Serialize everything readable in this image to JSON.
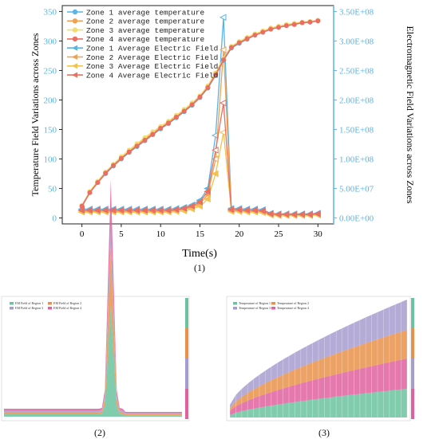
{
  "chart_data": [
    {
      "type": "line",
      "panel_label": "(1)",
      "xlabel": "Time(s)",
      "ylabel_left": "Temperature Field Variations across Zones",
      "ylabel_right": "Electromagnetic Field Variations across Zones",
      "xlim": [
        -2.5,
        32
      ],
      "ylim_left": [
        -10,
        360
      ],
      "ylim_right": [
        -10000000.0,
        360000000.0
      ],
      "x_ticks": [
        0,
        5,
        10,
        15,
        20,
        25,
        30
      ],
      "y_ticks_left": [
        0,
        50,
        100,
        150,
        200,
        250,
        300,
        350
      ],
      "y_ticks_right": [
        "0.00E+00",
        "5.00E+07",
        "1.00E+08",
        "1.50E+08",
        "2.00E+08",
        "2.50E+08",
        "3.00E+08",
        "3.50E+08"
      ],
      "y_ticks_right_values": [
        0,
        50000000.0,
        100000000.0,
        150000000.0,
        200000000.0,
        250000000.0,
        300000000.0,
        350000000.0
      ],
      "right_axis_color": "#5ab4e5",
      "legend_position": "top-left",
      "x": [
        0,
        1,
        2,
        3,
        4,
        5,
        6,
        7,
        8,
        9,
        10,
        11,
        12,
        13,
        14,
        15,
        16,
        17,
        18,
        19,
        20,
        21,
        22,
        23,
        24,
        25,
        26,
        27,
        28,
        29,
        30
      ],
      "series_temperature": [
        {
          "name": "Zone 1 average temperature",
          "color": "#5ab4e5",
          "marker": "circle",
          "values": [
            20,
            43,
            60,
            75,
            88,
            100,
            111,
            121,
            131,
            141,
            151,
            160,
            170,
            180,
            191,
            204,
            220,
            242,
            267,
            288,
            296,
            303,
            310,
            315,
            320,
            323,
            326,
            328,
            331,
            332,
            334
          ]
        },
        {
          "name": "Zone 2 average temperature",
          "color": "#f0a050",
          "marker": "circle",
          "values": [
            21,
            44,
            61,
            77,
            90,
            102,
            113,
            124,
            134,
            143,
            153,
            162,
            172,
            182,
            193,
            206,
            222,
            244,
            269,
            290,
            298,
            305,
            311,
            316,
            321,
            324,
            327,
            329,
            331,
            333,
            335
          ]
        },
        {
          "name": "Zone 3 average temperature",
          "color": "#f2dc6a",
          "marker": "circle",
          "values": [
            21,
            45,
            62,
            78,
            91,
            104,
            115,
            126,
            136,
            146,
            155,
            164,
            174,
            184,
            195,
            207,
            224,
            246,
            270,
            291,
            299,
            306,
            312,
            317,
            322,
            325,
            328,
            330,
            332,
            333,
            335
          ]
        },
        {
          "name": "Zone 4 average temperature",
          "color": "#ea6f60",
          "marker": "circle",
          "values": [
            20,
            43,
            60,
            76,
            89,
            101,
            112,
            122,
            132,
            142,
            152,
            161,
            171,
            181,
            192,
            205,
            221,
            243,
            268,
            289,
            297,
            304,
            310,
            315,
            320,
            323,
            326,
            328,
            331,
            332,
            334
          ]
        }
      ],
      "series_field": [
        {
          "name": "Zone 1 Average Electric Field",
          "color": "#5ab4e5",
          "marker": "triangle-left",
          "values": [
            15000000.0,
            15000000.0,
            15000000.0,
            15000000.0,
            15000000.0,
            15000000.0,
            15000000.0,
            15000000.0,
            15000000.0,
            15000000.0,
            15000000.0,
            15000000.0,
            16000000.0,
            18000000.0,
            22000000.0,
            30000000.0,
            50000000.0,
            140000000.0,
            340000000.0,
            16000000.0,
            16000000.0,
            15000000.0,
            15000000.0,
            14000000.0,
            8000000.0,
            7000000.0,
            7000000.0,
            7000000.0,
            7000000.0,
            7000000.0,
            8000000.0
          ]
        },
        {
          "name": "Zone 2 Average Electric Field",
          "color": "#f0a050",
          "marker": "triangle-left",
          "values": [
            12000000.0,
            12000000.0,
            12000000.0,
            12000000.0,
            12000000.0,
            12000000.0,
            12000000.0,
            12000000.0,
            12000000.0,
            12000000.0,
            12000000.0,
            12000000.0,
            13000000.0,
            15000000.0,
            18000000.0,
            24000000.0,
            40000000.0,
            100000000.0,
            285000000.0,
            13000000.0,
            13000000.0,
            12000000.0,
            12000000.0,
            11000000.0,
            6000000.0,
            5000000.0,
            5000000.0,
            5000000.0,
            5000000.0,
            5000000.0,
            6000000.0
          ]
        },
        {
          "name": "Zone 3 Average Electric Field",
          "color": "#f2c24e",
          "marker": "triangle-left",
          "values": [
            10000000.0,
            10000000.0,
            10000000.0,
            10000000.0,
            10000000.0,
            10000000.0,
            10000000.0,
            10000000.0,
            10000000.0,
            10000000.0,
            10000000.0,
            10000000.0,
            11000000.0,
            12000000.0,
            15000000.0,
            20000000.0,
            32000000.0,
            75000000.0,
            145000000.0,
            11000000.0,
            11000000.0,
            10000000.0,
            10000000.0,
            9000000.0,
            5000000.0,
            4000000.0,
            4000000.0,
            4000000.0,
            4000000.0,
            4000000.0,
            5000000.0
          ]
        },
        {
          "name": "Zone 4 Average Electric Field",
          "color": "#ea6f60",
          "marker": "triangle-left",
          "values": [
            13000000.0,
            13000000.0,
            13000000.0,
            13000000.0,
            13000000.0,
            13000000.0,
            13000000.0,
            13000000.0,
            13000000.0,
            13000000.0,
            13000000.0,
            13000000.0,
            14000000.0,
            16000000.0,
            20000000.0,
            27000000.0,
            45000000.0,
            115000000.0,
            195000000.0,
            14000000.0,
            14000000.0,
            13000000.0,
            13000000.0,
            12000000.0,
            7000000.0,
            6000000.0,
            6000000.0,
            6000000.0,
            6000000.0,
            6000000.0,
            7000000.0
          ]
        }
      ]
    },
    {
      "type": "area",
      "panel_label": "(2)",
      "legend": [
        "EM Field of Region 1",
        "EM Field of Region 2",
        "EM Field of Region 3",
        "EM Field of Region 4"
      ],
      "colors": [
        "#6cc3a0",
        "#e9904a",
        "#a79ccf",
        "#e0619f"
      ],
      "legend_position": "top-left",
      "grid": false
    },
    {
      "type": "area",
      "panel_label": "(3)",
      "legend": [
        "Temperature of Region 1",
        "Temperature of Region 2",
        "Temperature of Region 3",
        "Temperature of Region 4"
      ],
      "colors": [
        "#6cc3a0",
        "#e9904a",
        "#a79ccf",
        "#e0619f"
      ],
      "legend_position": "top-left",
      "grid": false
    }
  ]
}
